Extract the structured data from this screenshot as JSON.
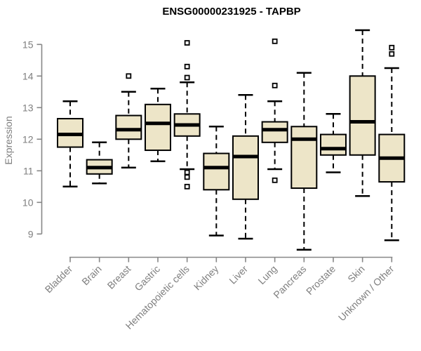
{
  "chart_data": {
    "type": "boxplot",
    "title": "ENSG00000231925 - TAPBP",
    "ylabel": "Expression",
    "xlabel": "",
    "ylim": [
      9,
      15
    ],
    "yticks": [
      9,
      10,
      11,
      12,
      13,
      14,
      15
    ],
    "grid": false,
    "legend": false,
    "orientation": "vertical",
    "x_label_rotation_deg": 45,
    "categories": [
      "Bladder",
      "Brain",
      "Breast",
      "Gastric",
      "Hematopoietic cells",
      "Kidney",
      "Liver",
      "Lung",
      "Pancreas",
      "Prostate",
      "Skin",
      "Unknown / Other"
    ],
    "series": [
      {
        "name": "Bladder",
        "whisker_low": 10.5,
        "q1": 11.75,
        "median": 12.15,
        "q3": 12.65,
        "whisker_high": 13.2,
        "outliers": []
      },
      {
        "name": "Brain",
        "whisker_low": 10.6,
        "q1": 10.9,
        "median": 11.1,
        "q3": 11.35,
        "whisker_high": 11.9,
        "outliers": []
      },
      {
        "name": "Breast",
        "whisker_low": 11.1,
        "q1": 12.0,
        "median": 12.3,
        "q3": 12.75,
        "whisker_high": 13.5,
        "outliers": [
          14.0
        ]
      },
      {
        "name": "Gastric",
        "whisker_low": 11.3,
        "q1": 11.65,
        "median": 12.5,
        "q3": 13.1,
        "whisker_high": 13.6,
        "outliers": []
      },
      {
        "name": "Hematopoietic cells",
        "whisker_low": 11.05,
        "q1": 12.1,
        "median": 12.45,
        "q3": 12.8,
        "whisker_high": 13.8,
        "outliers": [
          15.05,
          14.3,
          13.95,
          10.95,
          10.8,
          10.5
        ]
      },
      {
        "name": "Kidney",
        "whisker_low": 8.95,
        "q1": 10.4,
        "median": 11.1,
        "q3": 11.55,
        "whisker_high": 12.4,
        "outliers": []
      },
      {
        "name": "Liver",
        "whisker_low": 8.85,
        "q1": 10.1,
        "median": 11.45,
        "q3": 12.1,
        "whisker_high": 13.4,
        "outliers": []
      },
      {
        "name": "Lung",
        "whisker_low": 11.05,
        "q1": 11.9,
        "median": 12.3,
        "q3": 12.55,
        "whisker_high": 13.2,
        "outliers": [
          15.1,
          13.7,
          10.7
        ]
      },
      {
        "name": "Pancreas",
        "whisker_low": 8.5,
        "q1": 10.45,
        "median": 12.0,
        "q3": 12.4,
        "whisker_high": 14.1,
        "outliers": []
      },
      {
        "name": "Prostate",
        "whisker_low": 10.95,
        "q1": 11.5,
        "median": 11.7,
        "q3": 12.15,
        "whisker_high": 12.8,
        "outliers": []
      },
      {
        "name": "Skin",
        "whisker_low": 10.2,
        "q1": 11.5,
        "median": 12.55,
        "q3": 14.0,
        "whisker_high": 15.45,
        "outliers": []
      },
      {
        "name": "Unknown / Other",
        "whisker_low": 8.8,
        "q1": 10.65,
        "median": 11.4,
        "q3": 12.15,
        "whisker_high": 14.25,
        "outliers": [
          14.9,
          14.7
        ]
      }
    ],
    "colors": {
      "box_fill": "#ede5c8",
      "box_stroke": "#000000",
      "median": "#000000",
      "whisker": "#000000",
      "outlier_stroke": "#000000",
      "outlier_fill": "#ffffff",
      "axis": "#878787",
      "tick_label": "#7f7f7f",
      "title": "#000000",
      "background": "#ffffff"
    }
  }
}
